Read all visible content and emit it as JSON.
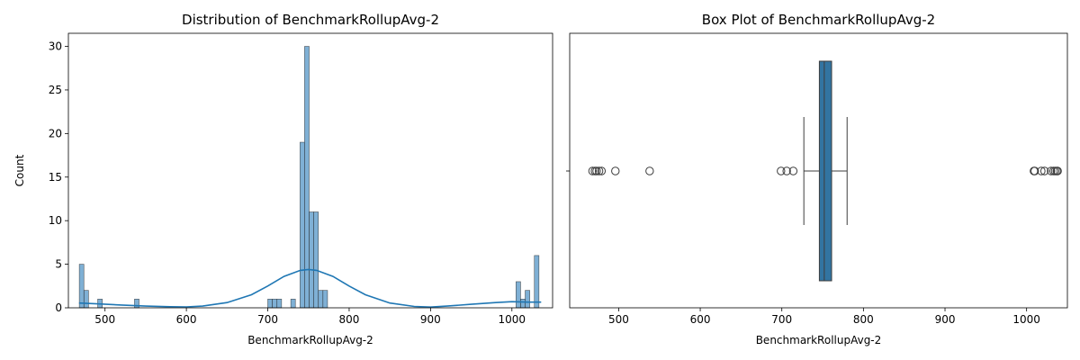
{
  "chart_data": [
    {
      "type": "histogram",
      "title": "Distribution of BenchmarkRollupAvg-2",
      "xlabel": "BenchmarkRollupAvg-2",
      "ylabel": "Count",
      "xlim": [
        455,
        1050
      ],
      "ylim": [
        0,
        31.5
      ],
      "xticks": [
        500,
        600,
        700,
        800,
        900,
        1000
      ],
      "yticks": [
        0,
        5,
        10,
        15,
        20,
        25,
        30
      ],
      "bar_color": "#7fb0d5",
      "kde_color": "#1f77b4",
      "bin_width": 5.65,
      "bins": [
        {
          "x": 468.4,
          "count": 5
        },
        {
          "x": 474.1,
          "count": 2
        },
        {
          "x": 491.0,
          "count": 1
        },
        {
          "x": 536.2,
          "count": 1
        },
        {
          "x": 700.0,
          "count": 1
        },
        {
          "x": 705.7,
          "count": 1
        },
        {
          "x": 711.3,
          "count": 1
        },
        {
          "x": 728.3,
          "count": 1
        },
        {
          "x": 739.6,
          "count": 19
        },
        {
          "x": 745.2,
          "count": 30
        },
        {
          "x": 750.9,
          "count": 11
        },
        {
          "x": 756.5,
          "count": 11
        },
        {
          "x": 762.2,
          "count": 2
        },
        {
          "x": 767.8,
          "count": 2
        },
        {
          "x": 1005.0,
          "count": 3
        },
        {
          "x": 1010.7,
          "count": 1
        },
        {
          "x": 1016.3,
          "count": 2
        },
        {
          "x": 1027.6,
          "count": 6
        }
      ],
      "kde": [
        [
          468,
          0.55
        ],
        [
          490,
          0.45
        ],
        [
          520,
          0.32
        ],
        [
          550,
          0.2
        ],
        [
          580,
          0.12
        ],
        [
          600,
          0.1
        ],
        [
          620,
          0.2
        ],
        [
          650,
          0.6
        ],
        [
          680,
          1.5
        ],
        [
          700,
          2.5
        ],
        [
          720,
          3.6
        ],
        [
          740,
          4.3
        ],
        [
          750,
          4.4
        ],
        [
          760,
          4.3
        ],
        [
          780,
          3.6
        ],
        [
          800,
          2.5
        ],
        [
          820,
          1.5
        ],
        [
          850,
          0.55
        ],
        [
          880,
          0.15
        ],
        [
          900,
          0.08
        ],
        [
          920,
          0.2
        ],
        [
          950,
          0.4
        ],
        [
          980,
          0.6
        ],
        [
          1000,
          0.7
        ],
        [
          1020,
          0.65
        ],
        [
          1036,
          0.65
        ]
      ]
    },
    {
      "type": "box",
      "title": "Box Plot of BenchmarkRollupAvg-2",
      "xlabel": "BenchmarkRollupAvg-2",
      "xlim": [
        440,
        1050
      ],
      "xticks": [
        500,
        600,
        700,
        800,
        900,
        1000
      ],
      "box_color": "#3274a1",
      "q1": 746,
      "median": 752,
      "q3": 761,
      "whisker_low": 727,
      "whisker_high": 780,
      "outliers": [
        468,
        471,
        473,
        476,
        479,
        496,
        538,
        699,
        706,
        714,
        1009,
        1010,
        1018,
        1022,
        1030,
        1033,
        1035,
        1037,
        1038
      ]
    }
  ]
}
